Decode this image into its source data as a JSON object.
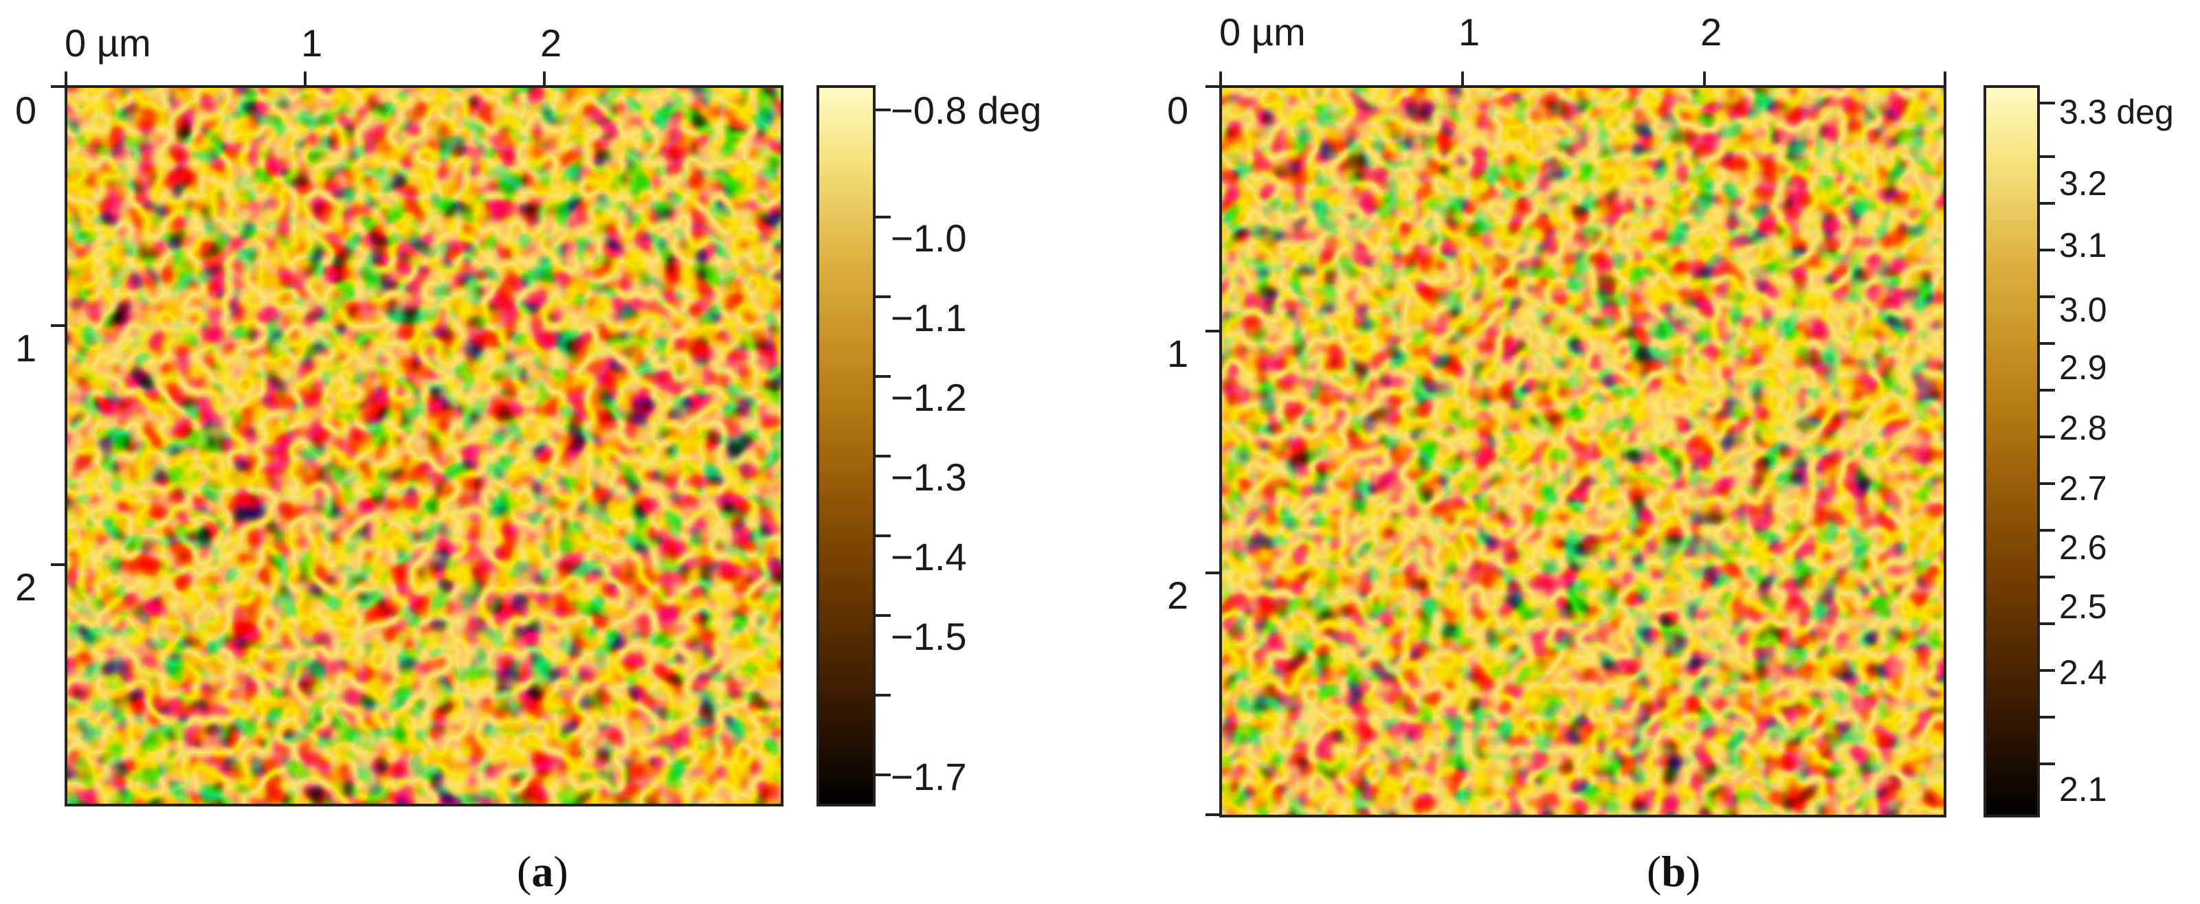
{
  "panels": [
    {
      "id": "a",
      "caption_open": "(",
      "caption_letter": "a",
      "caption_close": ")",
      "x_ticks": [
        "0 µm",
        "1",
        "2"
      ],
      "y_ticks": [
        "0",
        "1",
        "2"
      ],
      "colorbar_labels": [
        "−0.8 deg",
        "−1.0",
        "−1.1",
        "−1.2",
        "−1.3",
        "−1.4",
        "−1.5",
        "−1.7"
      ],
      "pattern_seed": 7
    },
    {
      "id": "b",
      "caption_open": "(",
      "caption_letter": "b",
      "caption_close": ")",
      "x_ticks": [
        "0 µm",
        "1",
        "2"
      ],
      "y_ticks": [
        "0",
        "1",
        "2"
      ],
      "colorbar_labels": [
        "3.3 deg",
        "3.2",
        "3.1",
        "3.0",
        "2.9",
        "2.8",
        "2.7",
        "2.6",
        "2.5",
        "2.4",
        "2.1"
      ],
      "pattern_seed": 19
    }
  ],
  "colormap": [
    "#000000",
    "#3a1a00",
    "#7a4200",
    "#b57712",
    "#dcae3c",
    "#f6e27e",
    "#fffbc4"
  ]
}
